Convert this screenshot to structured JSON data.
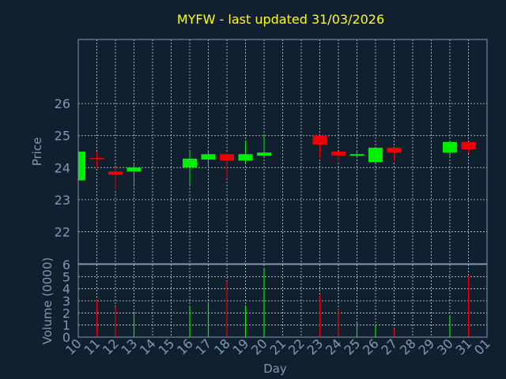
{
  "colors": {
    "background": "#10202f",
    "plot_border": "#7f9ab4",
    "grid": "#c8d4e0",
    "title": "#ffff00",
    "axis_text": "#7f9ab4",
    "up": "#00ee00",
    "down": "#ee0000"
  },
  "chart_data": [
    {
      "type": "candlestick",
      "title": "MYFW - last updated 31/03/2026",
      "ylabel": "Price",
      "ylim": [
        21,
        28
      ],
      "yticks": [
        22,
        23,
        24,
        25,
        26
      ],
      "grid": true,
      "candles": [
        {
          "day": "10",
          "open": 23.6,
          "high": 24.5,
          "low": 23.6,
          "close": 24.5
        },
        {
          "day": "11",
          "open": 24.3,
          "high": 24.5,
          "low": 24.0,
          "close": 24.28
        },
        {
          "day": "12",
          "open": 23.88,
          "high": 24.0,
          "low": 23.3,
          "close": 23.78
        },
        {
          "day": "13",
          "open": 23.88,
          "high": 24.1,
          "low": 23.4,
          "close": 24.0
        },
        {
          "day": "16",
          "open": 24.0,
          "high": 24.5,
          "low": 23.45,
          "close": 24.28
        },
        {
          "day": "17",
          "open": 24.25,
          "high": 24.55,
          "low": 24.0,
          "close": 24.42
        },
        {
          "day": "18",
          "open": 24.42,
          "high": 24.45,
          "low": 23.65,
          "close": 24.22
        },
        {
          "day": "19",
          "open": 24.22,
          "high": 24.85,
          "low": 24.15,
          "close": 24.42
        },
        {
          "day": "20",
          "open": 24.37,
          "high": 25.0,
          "low": 24.37,
          "close": 24.47
        },
        {
          "day": "23",
          "open": 25.0,
          "high": 25.0,
          "low": 24.3,
          "close": 24.72
        },
        {
          "day": "24",
          "open": 24.5,
          "high": 24.5,
          "low": 24.2,
          "close": 24.38
        },
        {
          "day": "25",
          "open": 24.37,
          "high": 24.55,
          "low": 24.3,
          "close": 24.42
        },
        {
          "day": "26",
          "open": 24.17,
          "high": 24.62,
          "low": 24.15,
          "close": 24.62
        },
        {
          "day": "27",
          "open": 24.62,
          "high": 24.62,
          "low": 24.2,
          "close": 24.47
        },
        {
          "day": "30",
          "open": 24.47,
          "high": 24.8,
          "low": 24.35,
          "close": 24.8
        },
        {
          "day": "31",
          "open": 24.8,
          "high": 24.8,
          "low": 24.45,
          "close": 24.57
        }
      ]
    },
    {
      "type": "bar",
      "ylabel": "Volume (0000)",
      "xlabel": "Day",
      "ylim": [
        0,
        6
      ],
      "yticks": [
        0,
        1,
        2,
        3,
        4,
        5,
        6
      ],
      "categories": [
        "10",
        "11",
        "12",
        "13",
        "14",
        "15",
        "16",
        "17",
        "18",
        "19",
        "20",
        "21",
        "22",
        "23",
        "24",
        "25",
        "26",
        "27",
        "28",
        "29",
        "30",
        "31",
        "01"
      ],
      "volumes": [
        {
          "day": "10",
          "value": 0,
          "direction": "up"
        },
        {
          "day": "11",
          "value": 3.1,
          "direction": "down"
        },
        {
          "day": "12",
          "value": 2.5,
          "direction": "down"
        },
        {
          "day": "13",
          "value": 2.0,
          "direction": "up"
        },
        {
          "day": "16",
          "value": 2.5,
          "direction": "up"
        },
        {
          "day": "17",
          "value": 2.9,
          "direction": "up"
        },
        {
          "day": "18",
          "value": 4.6,
          "direction": "down"
        },
        {
          "day": "19",
          "value": 2.6,
          "direction": "up"
        },
        {
          "day": "20",
          "value": 5.7,
          "direction": "up"
        },
        {
          "day": "23",
          "value": 3.5,
          "direction": "down"
        },
        {
          "day": "24",
          "value": 2.3,
          "direction": "down"
        },
        {
          "day": "25",
          "value": 1.3,
          "direction": "up"
        },
        {
          "day": "26",
          "value": 1.0,
          "direction": "up"
        },
        {
          "day": "27",
          "value": 0.7,
          "direction": "down"
        },
        {
          "day": "30",
          "value": 1.7,
          "direction": "up"
        },
        {
          "day": "31",
          "value": 5.1,
          "direction": "down"
        }
      ]
    }
  ]
}
